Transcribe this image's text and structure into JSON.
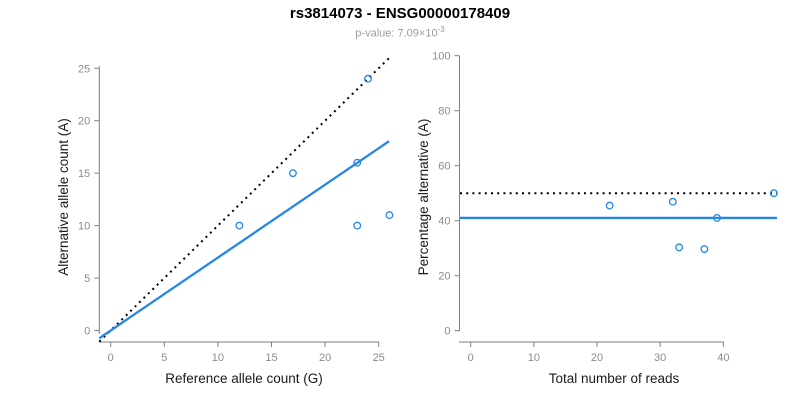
{
  "header": {
    "title": "rs3814073 - ENSG00000178409",
    "subtitle_prefix": "p-value: 7.09×10",
    "subtitle_exponent": "-3"
  },
  "colors": {
    "line_blue": "#2487E8",
    "line_black": "#000000",
    "axis_gray": "#7f7f7f",
    "tick_label_gray": "#8c8c8c",
    "title_black": "#000000",
    "subtitle_gray": "#9c9c9c"
  },
  "chart_data": [
    {
      "type": "scatter",
      "panel": "left",
      "xlabel": "Reference allele count (G)",
      "ylabel": "Alternative allele count (A)",
      "xlim": [
        0,
        26
      ],
      "ylim": [
        0,
        26
      ],
      "xticks": [
        0,
        5,
        10,
        15,
        20,
        25
      ],
      "yticks": [
        0,
        5,
        10,
        15,
        20,
        25
      ],
      "grid": false,
      "legend": null,
      "point_style": "open-circle",
      "points": [
        [
          12,
          10
        ],
        [
          17,
          15
        ],
        [
          23,
          10
        ],
        [
          23,
          16
        ],
        [
          24,
          24
        ],
        [
          26,
          11
        ]
      ],
      "lines": [
        {
          "name": "expected-1-to-1",
          "style": "dotted",
          "color": "black",
          "slope": 1,
          "intercept": 0
        },
        {
          "name": "observed-fit",
          "style": "solid",
          "color": "blue",
          "slope": 0.695,
          "intercept": 0
        }
      ]
    },
    {
      "type": "scatter",
      "panel": "right",
      "xlabel": "Total number of reads",
      "ylabel": "Percentage alternative (A)",
      "xlim": [
        0,
        48
      ],
      "ylim": [
        0,
        100
      ],
      "xticks": [
        0,
        10,
        20,
        30,
        40
      ],
      "yticks": [
        0,
        20,
        40,
        60,
        80,
        100
      ],
      "grid": false,
      "legend": null,
      "point_style": "open-circle",
      "points": [
        [
          22,
          45.5
        ],
        [
          32,
          46.9
        ],
        [
          33,
          30.3
        ],
        [
          37,
          29.7
        ],
        [
          39,
          41
        ],
        [
          48,
          50
        ]
      ],
      "lines": [
        {
          "name": "expected-50-percent",
          "style": "dotted",
          "color": "black",
          "y": 50
        },
        {
          "name": "observed-mean",
          "style": "solid",
          "color": "blue",
          "y": 41
        }
      ]
    }
  ]
}
